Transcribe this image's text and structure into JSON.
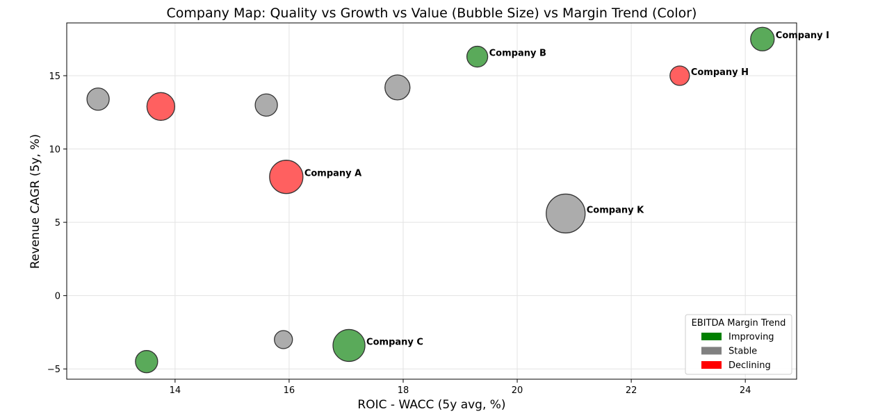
{
  "chart_data": {
    "type": "scatter",
    "title": "Company Map: Quality vs Growth vs Value (Bubble Size) vs Margin Trend (Color)",
    "xlabel": "ROIC - WACC (5y avg, %)",
    "ylabel": "Revenue CAGR (5y, %)",
    "xlim": [
      12.1,
      24.9
    ],
    "ylim": [
      -5.7,
      18.6
    ],
    "xticks": [
      14,
      16,
      18,
      20,
      22,
      24
    ],
    "yticks": [
      -5,
      0,
      5,
      10,
      15
    ],
    "grid": true,
    "size_encoding": "Value",
    "colors": {
      "Improving": "#008000",
      "Stable": "#808080",
      "Declining": "#ff0000"
    },
    "legend": {
      "title": "EBITDA Margin Trend",
      "position": "lower-right",
      "entries": [
        "Improving",
        "Stable",
        "Declining"
      ]
    },
    "points": [
      {
        "label": "",
        "x": 12.65,
        "y": 13.4,
        "size": 16,
        "trend": "Stable"
      },
      {
        "label": "",
        "x": 13.75,
        "y": 12.9,
        "size": 20,
        "trend": "Declining"
      },
      {
        "label": "",
        "x": 15.6,
        "y": 13.0,
        "size": 16,
        "trend": "Stable"
      },
      {
        "label": "",
        "x": 17.9,
        "y": 14.2,
        "size": 18,
        "trend": "Stable"
      },
      {
        "label": "Company B",
        "x": 19.3,
        "y": 16.3,
        "size": 15,
        "trend": "Improving"
      },
      {
        "label": "Company I",
        "x": 24.3,
        "y": 17.5,
        "size": 17,
        "trend": "Improving"
      },
      {
        "label": "Company H",
        "x": 22.85,
        "y": 15.0,
        "size": 14,
        "trend": "Declining"
      },
      {
        "label": "Company A",
        "x": 15.95,
        "y": 8.1,
        "size": 24,
        "trend": "Declining"
      },
      {
        "label": "Company K",
        "x": 20.85,
        "y": 5.6,
        "size": 28,
        "trend": "Stable"
      },
      {
        "label": "",
        "x": 15.9,
        "y": -3.0,
        "size": 13,
        "trend": "Stable"
      },
      {
        "label": "Company C",
        "x": 17.05,
        "y": -3.4,
        "size": 23,
        "trend": "Improving"
      },
      {
        "label": "",
        "x": 13.5,
        "y": -4.5,
        "size": 16,
        "trend": "Improving"
      }
    ]
  }
}
